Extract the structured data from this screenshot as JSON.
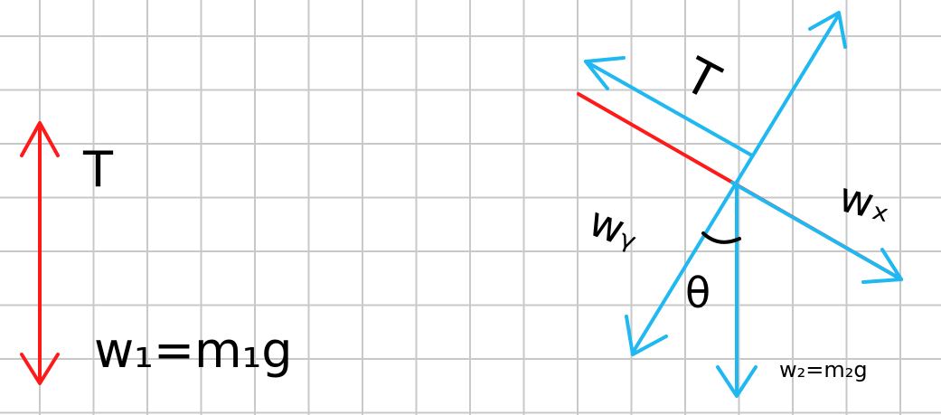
{
  "colors": {
    "grid": "#c8c8c8",
    "red": "#ff1a1a",
    "blue": "#1fb8f0",
    "ink": "#000000",
    "background": "#ffffff"
  },
  "left_diagram": {
    "tension_label": "T",
    "weight_label": "w₁=m₁g"
  },
  "right_diagram": {
    "tension_label": "T",
    "wx_label": "wₓ",
    "wy_label": "wᵧ",
    "angle_label": "θ",
    "weight_label": "w₂=m₂g"
  }
}
